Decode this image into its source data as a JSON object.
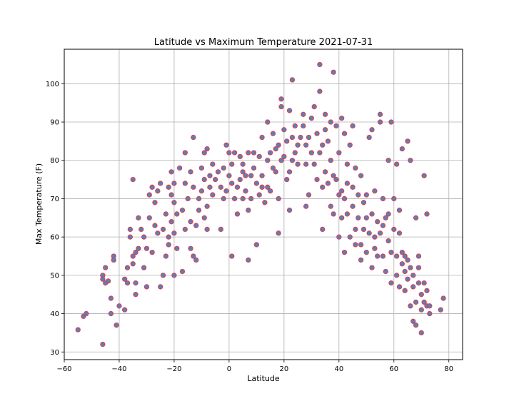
{
  "chart_data": {
    "type": "scatter",
    "title": "Latitude vs Maximum Temperature 2021-07-31",
    "xlabel": "Latitude",
    "ylabel": "Max Temperature (F)",
    "xlim": [
      -60,
      85
    ],
    "ylim": [
      28,
      109
    ],
    "xticks": [
      -60,
      -40,
      -20,
      0,
      20,
      40,
      60,
      80
    ],
    "yticks": [
      30,
      40,
      50,
      60,
      70,
      80,
      90,
      100
    ],
    "grid": true,
    "legend": "none",
    "marker_fill": "#5b7fb9",
    "marker_edge": "#e8383d",
    "points": [
      [
        -55,
        35.8
      ],
      [
        -53,
        39.3
      ],
      [
        -52,
        40
      ],
      [
        -46,
        32
      ],
      [
        -46,
        50
      ],
      [
        -46,
        49
      ],
      [
        -45,
        48
      ],
      [
        -45,
        52
      ],
      [
        -44,
        48.5
      ],
      [
        -43,
        44
      ],
      [
        -43,
        40
      ],
      [
        -42,
        55
      ],
      [
        -42,
        54
      ],
      [
        -41,
        37
      ],
      [
        -40,
        42
      ],
      [
        -38,
        41
      ],
      [
        -38,
        49
      ],
      [
        -37,
        48
      ],
      [
        -37,
        52
      ],
      [
        -36,
        60
      ],
      [
        -36,
        62
      ],
      [
        -35,
        55
      ],
      [
        -35,
        53
      ],
      [
        -35,
        75
      ],
      [
        -34,
        45
      ],
      [
        -34,
        48
      ],
      [
        -34,
        56
      ],
      [
        -33,
        57
      ],
      [
        -33,
        65
      ],
      [
        -32,
        62
      ],
      [
        -31,
        60
      ],
      [
        -31,
        52
      ],
      [
        -30,
        47
      ],
      [
        -30,
        57
      ],
      [
        -29,
        65
      ],
      [
        -29,
        71
      ],
      [
        -28,
        73
      ],
      [
        -28,
        56
      ],
      [
        -27,
        63
      ],
      [
        -27,
        69
      ],
      [
        -26,
        61
      ],
      [
        -26,
        72
      ],
      [
        -25,
        47
      ],
      [
        -25,
        74
      ],
      [
        -24,
        50
      ],
      [
        -24,
        62
      ],
      [
        -23,
        66
      ],
      [
        -23,
        55
      ],
      [
        -22,
        73
      ],
      [
        -22,
        60
      ],
      [
        -22,
        58
      ],
      [
        -21,
        64
      ],
      [
        -21,
        71
      ],
      [
        -21,
        77
      ],
      [
        -20,
        69
      ],
      [
        -20,
        74
      ],
      [
        -20,
        61
      ],
      [
        -20,
        50
      ],
      [
        -19,
        66
      ],
      [
        -19,
        57
      ],
      [
        -18,
        78
      ],
      [
        -17,
        67
      ],
      [
        -17,
        51
      ],
      [
        -16,
        82
      ],
      [
        -16,
        74
      ],
      [
        -16,
        62
      ],
      [
        -15,
        70
      ],
      [
        -14,
        57
      ],
      [
        -14,
        64
      ],
      [
        -14,
        77
      ],
      [
        -13,
        86
      ],
      [
        -13,
        73
      ],
      [
        -13,
        55
      ],
      [
        -12,
        54
      ],
      [
        -12,
        63
      ],
      [
        -11,
        67
      ],
      [
        -11,
        70
      ],
      [
        -10,
        72
      ],
      [
        -10,
        78
      ],
      [
        -9,
        82
      ],
      [
        -9,
        75
      ],
      [
        -9,
        65
      ],
      [
        -8,
        83
      ],
      [
        -8,
        68
      ],
      [
        -8,
        62
      ],
      [
        -7,
        73
      ],
      [
        -7,
        76
      ],
      [
        -6,
        79
      ],
      [
        -6,
        71
      ],
      [
        -5,
        75
      ],
      [
        -4,
        77
      ],
      [
        -3,
        62
      ],
      [
        -3,
        73
      ],
      [
        -2,
        78
      ],
      [
        -2,
        70
      ],
      [
        -1,
        72
      ],
      [
        -1,
        84
      ],
      [
        0,
        82
      ],
      [
        0,
        76
      ],
      [
        1,
        79
      ],
      [
        1,
        74
      ],
      [
        1,
        55
      ],
      [
        2,
        70
      ],
      [
        2,
        82
      ],
      [
        3,
        66
      ],
      [
        3,
        73
      ],
      [
        4,
        75
      ],
      [
        4,
        81
      ],
      [
        5,
        70
      ],
      [
        5,
        77
      ],
      [
        5,
        79
      ],
      [
        6,
        72
      ],
      [
        6,
        76
      ],
      [
        7,
        54
      ],
      [
        7,
        67
      ],
      [
        7,
        82
      ],
      [
        8,
        70
      ],
      [
        8,
        76
      ],
      [
        9,
        78
      ],
      [
        9,
        82
      ],
      [
        10,
        58
      ],
      [
        10,
        74
      ],
      [
        11,
        71
      ],
      [
        11,
        81
      ],
      [
        12,
        73
      ],
      [
        12,
        76
      ],
      [
        12,
        86
      ],
      [
        13,
        69
      ],
      [
        14,
        80
      ],
      [
        14,
        73
      ],
      [
        14,
        90
      ],
      [
        15,
        82
      ],
      [
        15,
        72
      ],
      [
        16,
        78
      ],
      [
        16,
        87
      ],
      [
        17,
        77
      ],
      [
        17,
        83
      ],
      [
        18,
        70
      ],
      [
        18,
        84
      ],
      [
        18,
        61
      ],
      [
        19,
        94
      ],
      [
        19,
        96
      ],
      [
        19,
        80
      ],
      [
        20,
        81
      ],
      [
        20,
        88
      ],
      [
        21,
        75
      ],
      [
        21,
        85
      ],
      [
        22,
        77
      ],
      [
        22,
        93
      ],
      [
        22,
        67
      ],
      [
        23,
        101
      ],
      [
        23,
        80
      ],
      [
        23,
        86
      ],
      [
        24,
        82
      ],
      [
        24,
        89
      ],
      [
        25,
        79
      ],
      [
        25,
        84
      ],
      [
        26,
        86
      ],
      [
        27,
        92
      ],
      [
        27,
        89
      ],
      [
        28,
        79
      ],
      [
        28,
        68
      ],
      [
        28,
        84
      ],
      [
        29,
        71
      ],
      [
        29,
        86
      ],
      [
        30,
        82
      ],
      [
        30,
        91
      ],
      [
        31,
        79
      ],
      [
        31,
        94
      ],
      [
        32,
        75
      ],
      [
        32,
        87
      ],
      [
        33,
        82
      ],
      [
        33,
        98
      ],
      [
        33,
        105
      ],
      [
        34,
        62
      ],
      [
        34,
        73
      ],
      [
        34,
        84
      ],
      [
        35,
        88
      ],
      [
        35,
        77
      ],
      [
        35,
        92
      ],
      [
        36,
        74
      ],
      [
        36,
        85
      ],
      [
        37,
        80
      ],
      [
        37,
        68
      ],
      [
        37,
        90
      ],
      [
        38,
        76
      ],
      [
        38,
        103
      ],
      [
        38,
        66
      ],
      [
        39,
        75
      ],
      [
        39,
        89
      ],
      [
        40,
        71
      ],
      [
        40,
        82
      ],
      [
        40,
        60
      ],
      [
        41,
        91
      ],
      [
        41,
        65
      ],
      [
        41,
        72
      ],
      [
        42,
        56
      ],
      [
        42,
        70
      ],
      [
        42,
        87
      ],
      [
        43,
        66
      ],
      [
        43,
        74
      ],
      [
        43,
        79
      ],
      [
        44,
        84
      ],
      [
        44,
        60
      ],
      [
        45,
        73
      ],
      [
        45,
        68
      ],
      [
        45,
        89
      ],
      [
        46,
        62
      ],
      [
        46,
        78
      ],
      [
        46,
        58
      ],
      [
        47,
        71
      ],
      [
        47,
        65
      ],
      [
        48,
        58
      ],
      [
        48,
        76
      ],
      [
        48,
        54
      ],
      [
        49,
        62
      ],
      [
        49,
        69
      ],
      [
        50,
        56
      ],
      [
        50,
        71
      ],
      [
        50,
        65
      ],
      [
        51,
        61
      ],
      [
        51,
        86
      ],
      [
        52,
        52
      ],
      [
        52,
        66
      ],
      [
        52,
        88
      ],
      [
        53,
        60
      ],
      [
        53,
        57
      ],
      [
        53,
        72
      ],
      [
        54,
        64
      ],
      [
        54,
        55
      ],
      [
        55,
        61
      ],
      [
        55,
        90
      ],
      [
        55,
        92
      ],
      [
        56,
        55
      ],
      [
        56,
        63
      ],
      [
        56,
        70
      ],
      [
        57,
        51
      ],
      [
        57,
        65
      ],
      [
        58,
        66
      ],
      [
        58,
        59
      ],
      [
        58,
        80
      ],
      [
        59,
        56
      ],
      [
        59,
        48
      ],
      [
        59,
        90
      ],
      [
        60,
        62
      ],
      [
        60,
        70
      ],
      [
        61,
        50
      ],
      [
        61,
        55
      ],
      [
        61,
        79
      ],
      [
        62,
        47
      ],
      [
        62,
        61
      ],
      [
        62,
        67
      ],
      [
        63,
        53
      ],
      [
        63,
        56
      ],
      [
        63,
        83
      ],
      [
        64,
        51
      ],
      [
        64,
        55
      ],
      [
        64,
        46
      ],
      [
        65,
        54
      ],
      [
        65,
        49
      ],
      [
        65,
        85
      ],
      [
        66,
        52
      ],
      [
        66,
        42
      ],
      [
        66,
        80
      ],
      [
        67,
        38
      ],
      [
        67,
        47
      ],
      [
        67,
        50
      ],
      [
        68,
        37
      ],
      [
        68,
        43
      ],
      [
        68,
        65
      ],
      [
        69,
        52
      ],
      [
        69,
        48
      ],
      [
        69,
        55
      ],
      [
        70,
        35
      ],
      [
        70,
        41
      ],
      [
        70,
        45
      ],
      [
        71,
        43
      ],
      [
        71,
        48
      ],
      [
        71,
        76
      ],
      [
        72,
        46
      ],
      [
        72,
        42
      ],
      [
        72,
        66
      ],
      [
        73,
        40
      ],
      [
        73,
        42
      ],
      [
        77,
        41
      ],
      [
        78,
        44
      ]
    ]
  }
}
